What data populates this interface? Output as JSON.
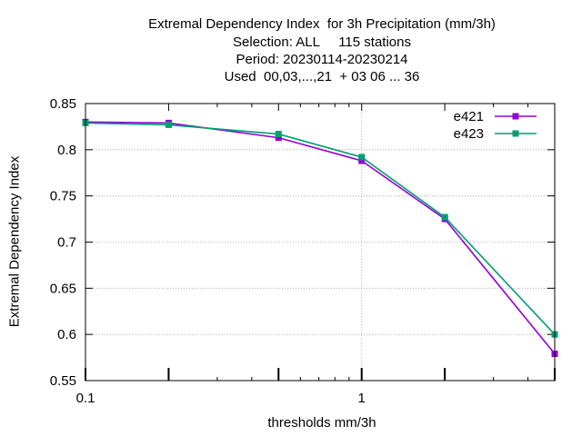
{
  "chart_data": {
    "type": "line",
    "title_lines": [
      "Extremal Dependency Index  for 3h Precipitation (mm/3h)",
      "Selection: ALL     115 stations",
      "Period: 20230114-20230214",
      "Used  00,03,...,21  + 03 06 ... 36"
    ],
    "xlabel": "thresholds mm/3h",
    "ylabel": "Extremal Dependency Index",
    "x_scale": "log",
    "xlim": [
      0.1,
      5
    ],
    "ylim": [
      0.55,
      0.85
    ],
    "x_tick_labels": [
      "0.1",
      "1"
    ],
    "x_major_ticks": [
      0.1,
      0.2,
      0.5,
      1,
      2,
      5
    ],
    "y_ticks": [
      0.55,
      0.6,
      0.65,
      0.7,
      0.75,
      0.8,
      0.85
    ],
    "grid": true,
    "legend_position": "top-right",
    "x": [
      0.1,
      0.2,
      0.5,
      1,
      2,
      5
    ],
    "series": [
      {
        "name": "e421",
        "color": "#9400d3",
        "values": [
          0.83,
          0.829,
          0.813,
          0.788,
          0.725,
          0.579
        ]
      },
      {
        "name": "e423",
        "color": "#009e73",
        "values": [
          0.829,
          0.827,
          0.817,
          0.792,
          0.727,
          0.6
        ]
      }
    ]
  }
}
